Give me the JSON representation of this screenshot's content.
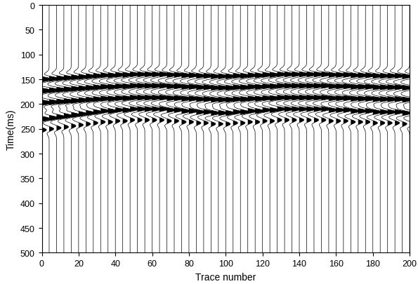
{
  "chart_data": {
    "type": "wiggle",
    "xlabel": "Trace number",
    "ylabel": "Time(ms)",
    "xlim": [
      0,
      200
    ],
    "ylim": [
      500,
      0
    ],
    "xticks": [
      0,
      20,
      40,
      60,
      80,
      100,
      120,
      140,
      160,
      180,
      200
    ],
    "yticks": [
      0,
      50,
      100,
      150,
      200,
      250,
      300,
      350,
      400,
      450,
      500
    ],
    "color": "#000000",
    "x": [
      0,
      4,
      8,
      12,
      16,
      20,
      24,
      28,
      32,
      36,
      40,
      44,
      48,
      52,
      56,
      60,
      64,
      68,
      72,
      76,
      80,
      84,
      88,
      92,
      96,
      100,
      104,
      108,
      112,
      116,
      120,
      124,
      128,
      132,
      136,
      140,
      144,
      148,
      152,
      156,
      160,
      164,
      168,
      172,
      176,
      180,
      184,
      188,
      192,
      196,
      200
    ],
    "events": [
      {
        "amplitude": 0.9,
        "values": [
          150,
          149,
          148,
          147,
          146,
          145,
          144,
          143,
          142,
          142,
          141,
          141,
          140,
          140,
          140,
          140,
          140,
          141,
          141,
          142,
          142,
          143,
          143,
          144,
          144,
          144,
          143,
          143,
          142,
          142,
          141,
          141,
          140,
          140,
          140,
          140,
          140,
          140,
          140,
          141,
          141,
          141,
          142,
          142,
          142,
          143,
          143,
          143,
          143,
          144,
          144
        ]
      },
      {
        "amplitude": 1.0,
        "values": [
          173,
          172,
          171,
          170,
          169,
          168,
          167,
          166,
          165,
          165,
          164,
          164,
          163,
          163,
          163,
          163,
          163,
          164,
          164,
          165,
          165,
          166,
          166,
          167,
          167,
          167,
          166,
          166,
          165,
          165,
          164,
          164,
          163,
          163,
          163,
          163,
          163,
          163,
          163,
          164,
          164,
          164,
          165,
          165,
          165,
          166,
          166,
          166,
          166,
          167,
          167
        ]
      },
      {
        "amplitude": 1.0,
        "values": [
          197,
          196,
          195,
          194,
          193,
          192,
          191,
          190,
          189,
          189,
          188,
          188,
          187,
          187,
          187,
          187,
          187,
          188,
          188,
          189,
          189,
          190,
          190,
          191,
          191,
          191,
          190,
          190,
          189,
          189,
          188,
          188,
          187,
          187,
          187,
          187,
          187,
          187,
          187,
          188,
          188,
          188,
          189,
          189,
          189,
          190,
          190,
          190,
          190,
          191,
          191
        ]
      },
      {
        "amplitude": 0.8,
        "values": [
          230,
          228,
          226,
          224,
          222,
          220,
          218,
          216,
          214,
          214,
          212,
          212,
          210,
          210,
          210,
          210,
          210,
          212,
          212,
          214,
          214,
          216,
          216,
          218,
          218,
          218,
          216,
          216,
          214,
          214,
          212,
          212,
          210,
          210,
          210,
          210,
          210,
          210,
          210,
          212,
          212,
          212,
          214,
          214,
          214,
          216,
          216,
          216,
          216,
          218,
          218
        ]
      },
      {
        "amplitude": 0.4,
        "values": [
          252,
          250,
          248,
          246,
          244,
          242,
          240,
          238,
          236,
          236,
          234,
          234,
          232,
          232,
          232,
          232,
          232,
          234,
          234,
          236,
          236,
          238,
          238,
          240,
          240,
          240,
          238,
          238,
          236,
          236,
          234,
          234,
          232,
          232,
          232,
          232,
          232,
          232,
          232,
          234,
          234,
          234,
          236,
          236,
          236,
          238,
          238,
          238,
          238,
          240,
          240
        ]
      }
    ]
  }
}
